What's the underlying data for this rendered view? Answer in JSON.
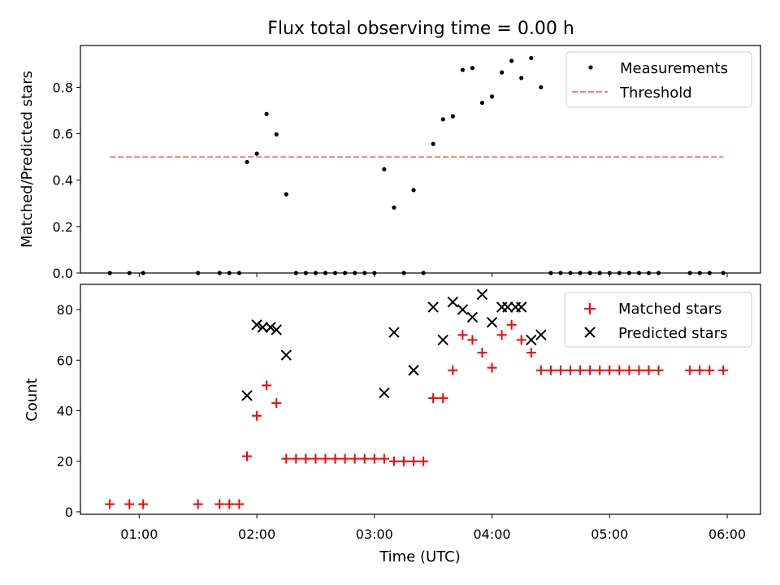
{
  "chart_data": [
    {
      "type": "scatter",
      "title": "Flux total observing time = 0.00 h",
      "xlabel": "",
      "ylabel": "Matched/Predicted stars",
      "xlim": [
        "00:30",
        "06:17"
      ],
      "ylim": [
        0,
        0.98
      ],
      "yticks": [
        0.0,
        0.2,
        0.4,
        0.6,
        0.8
      ],
      "ytick_labels": [
        "0.0",
        "0.2",
        "0.4",
        "0.6",
        "0.8"
      ],
      "xticks": [
        "01:00",
        "02:00",
        "03:00",
        "04:00",
        "05:00",
        "06:00"
      ],
      "legend": {
        "placement": "top-right",
        "entries": [
          "Measurements",
          "Threshold"
        ]
      },
      "series": [
        {
          "name": "Measurements",
          "marker": "dot",
          "color": "#000000",
          "points": [
            {
              "x": "00:45",
              "y": 0.0
            },
            {
              "x": "00:55",
              "y": 0.0
            },
            {
              "x": "01:02",
              "y": 0.0
            },
            {
              "x": "01:30",
              "y": 0.0
            },
            {
              "x": "01:41",
              "y": 0.0
            },
            {
              "x": "01:46",
              "y": 0.0
            },
            {
              "x": "01:51",
              "y": 0.0
            },
            {
              "x": "01:55",
              "y": 0.478
            },
            {
              "x": "02:00",
              "y": 0.514
            },
            {
              "x": "02:05",
              "y": 0.685
            },
            {
              "x": "02:10",
              "y": 0.597
            },
            {
              "x": "02:15",
              "y": 0.339
            },
            {
              "x": "02:20",
              "y": 0.0
            },
            {
              "x": "02:25",
              "y": 0.0
            },
            {
              "x": "02:30",
              "y": 0.0
            },
            {
              "x": "02:35",
              "y": 0.0
            },
            {
              "x": "02:40",
              "y": 0.0
            },
            {
              "x": "02:45",
              "y": 0.0
            },
            {
              "x": "02:50",
              "y": 0.0
            },
            {
              "x": "02:55",
              "y": 0.0
            },
            {
              "x": "03:00",
              "y": 0.0
            },
            {
              "x": "03:05",
              "y": 0.447
            },
            {
              "x": "03:10",
              "y": 0.282
            },
            {
              "x": "03:15",
              "y": 0.0
            },
            {
              "x": "03:20",
              "y": 0.357
            },
            {
              "x": "03:25",
              "y": 0.0
            },
            {
              "x": "03:30",
              "y": 0.556
            },
            {
              "x": "03:35",
              "y": 0.662
            },
            {
              "x": "03:40",
              "y": 0.675
            },
            {
              "x": "03:45",
              "y": 0.875
            },
            {
              "x": "03:50",
              "y": 0.883
            },
            {
              "x": "03:55",
              "y": 0.733
            },
            {
              "x": "04:00",
              "y": 0.76
            },
            {
              "x": "04:05",
              "y": 0.864
            },
            {
              "x": "04:10",
              "y": 0.914
            },
            {
              "x": "04:15",
              "y": 0.84
            },
            {
              "x": "04:20",
              "y": 0.926
            },
            {
              "x": "04:25",
              "y": 0.8
            },
            {
              "x": "04:30",
              "y": 0.0
            },
            {
              "x": "04:35",
              "y": 0.0
            },
            {
              "x": "04:40",
              "y": 0.0
            },
            {
              "x": "04:45",
              "y": 0.0
            },
            {
              "x": "04:50",
              "y": 0.0
            },
            {
              "x": "04:55",
              "y": 0.0
            },
            {
              "x": "05:00",
              "y": 0.0
            },
            {
              "x": "05:05",
              "y": 0.0
            },
            {
              "x": "05:10",
              "y": 0.0
            },
            {
              "x": "05:15",
              "y": 0.0
            },
            {
              "x": "05:20",
              "y": 0.0
            },
            {
              "x": "05:25",
              "y": 0.0
            },
            {
              "x": "05:41",
              "y": 0.0
            },
            {
              "x": "05:46",
              "y": 0.0
            },
            {
              "x": "05:51",
              "y": 0.0
            },
            {
              "x": "05:58",
              "y": 0.0
            }
          ]
        },
        {
          "name": "Threshold",
          "marker": "dashed-line",
          "color": "#ff7f7f",
          "points": [
            {
              "x": "00:45",
              "y": 0.5
            },
            {
              "x": "05:58",
              "y": 0.5
            }
          ]
        }
      ]
    },
    {
      "type": "scatter",
      "title": "",
      "xlabel": "Time (UTC)",
      "ylabel": "Count",
      "xlim": [
        "00:30",
        "06:17"
      ],
      "ylim": [
        -1,
        90
      ],
      "yticks": [
        0,
        20,
        40,
        60,
        80
      ],
      "ytick_labels": [
        "0",
        "20",
        "40",
        "60",
        "80"
      ],
      "xticks": [
        "01:00",
        "02:00",
        "03:00",
        "04:00",
        "05:00",
        "06:00"
      ],
      "xtick_labels": [
        "01:00",
        "02:00",
        "03:00",
        "04:00",
        "05:00",
        "06:00"
      ],
      "legend": {
        "placement": "top-right",
        "entries": [
          "Matched stars",
          "Predicted stars"
        ]
      },
      "series": [
        {
          "name": "Matched stars",
          "marker": "plus",
          "color": "#ff0000",
          "points": [
            {
              "x": "00:45",
              "y": 3
            },
            {
              "x": "00:55",
              "y": 3
            },
            {
              "x": "01:02",
              "y": 3
            },
            {
              "x": "01:30",
              "y": 3
            },
            {
              "x": "01:41",
              "y": 3
            },
            {
              "x": "01:46",
              "y": 3
            },
            {
              "x": "01:51",
              "y": 3
            },
            {
              "x": "01:55",
              "y": 22
            },
            {
              "x": "02:00",
              "y": 38
            },
            {
              "x": "02:05",
              "y": 50
            },
            {
              "x": "02:10",
              "y": 43
            },
            {
              "x": "02:15",
              "y": 21
            },
            {
              "x": "02:20",
              "y": 21
            },
            {
              "x": "02:25",
              "y": 21
            },
            {
              "x": "02:30",
              "y": 21
            },
            {
              "x": "02:35",
              "y": 21
            },
            {
              "x": "02:40",
              "y": 21
            },
            {
              "x": "02:45",
              "y": 21
            },
            {
              "x": "02:50",
              "y": 21
            },
            {
              "x": "02:55",
              "y": 21
            },
            {
              "x": "03:00",
              "y": 21
            },
            {
              "x": "03:05",
              "y": 21
            },
            {
              "x": "03:10",
              "y": 20
            },
            {
              "x": "03:15",
              "y": 20
            },
            {
              "x": "03:20",
              "y": 20
            },
            {
              "x": "03:25",
              "y": 20
            },
            {
              "x": "03:30",
              "y": 45
            },
            {
              "x": "03:35",
              "y": 45
            },
            {
              "x": "03:40",
              "y": 56
            },
            {
              "x": "03:45",
              "y": 70
            },
            {
              "x": "03:50",
              "y": 68
            },
            {
              "x": "03:55",
              "y": 63
            },
            {
              "x": "04:00",
              "y": 57
            },
            {
              "x": "04:05",
              "y": 70
            },
            {
              "x": "04:10",
              "y": 74
            },
            {
              "x": "04:15",
              "y": 68
            },
            {
              "x": "04:20",
              "y": 63
            },
            {
              "x": "04:25",
              "y": 56
            },
            {
              "x": "04:30",
              "y": 56
            },
            {
              "x": "04:35",
              "y": 56
            },
            {
              "x": "04:40",
              "y": 56
            },
            {
              "x": "04:45",
              "y": 56
            },
            {
              "x": "04:50",
              "y": 56
            },
            {
              "x": "04:55",
              "y": 56
            },
            {
              "x": "05:00",
              "y": 56
            },
            {
              "x": "05:05",
              "y": 56
            },
            {
              "x": "05:10",
              "y": 56
            },
            {
              "x": "05:15",
              "y": 56
            },
            {
              "x": "05:20",
              "y": 56
            },
            {
              "x": "05:25",
              "y": 56
            },
            {
              "x": "05:41",
              "y": 56
            },
            {
              "x": "05:46",
              "y": 56
            },
            {
              "x": "05:51",
              "y": 56
            },
            {
              "x": "05:58",
              "y": 56
            }
          ]
        },
        {
          "name": "Predicted stars",
          "marker": "x",
          "color": "#000000",
          "points": [
            {
              "x": "01:55",
              "y": 46
            },
            {
              "x": "02:00",
              "y": 74
            },
            {
              "x": "02:03",
              "y": 73
            },
            {
              "x": "02:07",
              "y": 73
            },
            {
              "x": "02:10",
              "y": 72
            },
            {
              "x": "02:15",
              "y": 62
            },
            {
              "x": "03:05",
              "y": 47
            },
            {
              "x": "03:10",
              "y": 71
            },
            {
              "x": "03:20",
              "y": 56
            },
            {
              "x": "03:30",
              "y": 81
            },
            {
              "x": "03:35",
              "y": 68
            },
            {
              "x": "03:40",
              "y": 83
            },
            {
              "x": "03:45",
              "y": 80
            },
            {
              "x": "03:50",
              "y": 77
            },
            {
              "x": "03:55",
              "y": 86
            },
            {
              "x": "04:00",
              "y": 75
            },
            {
              "x": "04:05",
              "y": 81
            },
            {
              "x": "04:08",
              "y": 81
            },
            {
              "x": "04:12",
              "y": 81
            },
            {
              "x": "04:15",
              "y": 81
            },
            {
              "x": "04:20",
              "y": 68
            },
            {
              "x": "04:25",
              "y": 70
            }
          ]
        }
      ]
    }
  ]
}
